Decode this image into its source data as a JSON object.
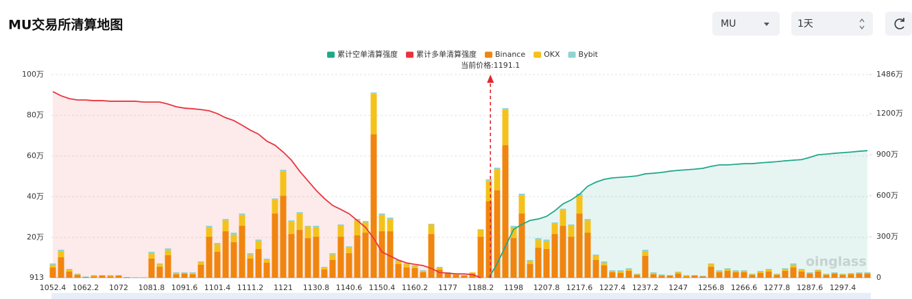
{
  "header": {
    "title": "MU交易所清算地图",
    "symbol": "MU",
    "range": "1天"
  },
  "chart_data": {
    "type": "bar",
    "price_label": "当前价格:1191.1",
    "current_price": 1191.1,
    "watermark": "oinglass",
    "categories": [
      "1052.4",
      null,
      null,
      null,
      "1062.2",
      null,
      null,
      null,
      "1072",
      null,
      null,
      null,
      "1081.8",
      null,
      null,
      null,
      "1091.6",
      null,
      null,
      null,
      "1101.4",
      null,
      null,
      null,
      "1111.2",
      null,
      null,
      null,
      "1121",
      null,
      null,
      null,
      "1130.8",
      null,
      null,
      null,
      "1140.6",
      null,
      null,
      null,
      "1150.4",
      null,
      null,
      null,
      "1160.2",
      null,
      null,
      null,
      "1177",
      null,
      null,
      null,
      "1188.2",
      null,
      null,
      null,
      "1198",
      null,
      null,
      null,
      "1207.8",
      null,
      null,
      null,
      "1217.6",
      null,
      null,
      null,
      "1227.4",
      null,
      null,
      null,
      "1237.2",
      null,
      null,
      null,
      "1247",
      null,
      null,
      null,
      "1256.8",
      null,
      null,
      null,
      "1266.6",
      null,
      null,
      null,
      "1277.8",
      null,
      null,
      null,
      "1287.6",
      null,
      null,
      null,
      "1297.4",
      null,
      null,
      null
    ],
    "ylim": [
      913,
      1000000
    ],
    "yticks": [
      913,
      {
        "value": 200000,
        "label": "20万"
      },
      {
        "value": 400000,
        "label": "40万"
      },
      {
        "value": 600000,
        "label": "60万"
      },
      {
        "value": 800000,
        "label": "80万"
      },
      {
        "value": 1000000,
        "label": "100万"
      }
    ],
    "y2lim": [
      0,
      14860000
    ],
    "y2ticks": [
      0,
      {
        "value": 3000000,
        "label": "300万"
      },
      {
        "value": 6000000,
        "label": "600万"
      },
      {
        "value": 9000000,
        "label": "900万"
      },
      {
        "value": 12000000,
        "label": "1200万"
      },
      {
        "value": 14860000,
        "label": "1486万"
      }
    ],
    "grid": true,
    "series": [
      {
        "name": "累计空单清算强度",
        "kind": "line",
        "color": "#1fa88a",
        "fill": "rgba(31,168,138,0.11)",
        "values": [
          null,
          null,
          null,
          null,
          null,
          null,
          null,
          null,
          null,
          null,
          null,
          null,
          null,
          null,
          null,
          null,
          null,
          null,
          null,
          null,
          null,
          null,
          null,
          null,
          null,
          null,
          null,
          null,
          null,
          null,
          null,
          null,
          null,
          null,
          null,
          null,
          null,
          null,
          null,
          null,
          null,
          null,
          null,
          null,
          null,
          null,
          null,
          null,
          null,
          null,
          null,
          null,
          null,
          913,
          71000,
          155000,
          239000,
          263000,
          283000,
          290000,
          303000,
          330000,
          364000,
          384000,
          411000,
          451000,
          471000,
          485000,
          492000,
          495000,
          498000,
          502000,
          512000,
          515000,
          519000,
          525000,
          529000,
          532000,
          535000,
          539000,
          549000,
          556000,
          556000,
          559000,
          562000,
          562000,
          566000,
          569000,
          572000,
          576000,
          579000,
          582000,
          593000,
          606000,
          609000,
          613000,
          616000,
          619000,
          623000,
          626000
        ]
      },
      {
        "name": "累计多单清算强度",
        "kind": "line",
        "color": "#e8343f",
        "fill": "rgba(240,90,100,0.13)",
        "values": [
          916000,
          896000,
          882000,
          875000,
          875000,
          872000,
          872000,
          869000,
          869000,
          869000,
          869000,
          865000,
          865000,
          865000,
          855000,
          842000,
          835000,
          832000,
          828000,
          822000,
          808000,
          788000,
          774000,
          751000,
          727000,
          707000,
          673000,
          653000,
          619000,
          579000,
          525000,
          478000,
          431000,
          391000,
          357000,
          337000,
          316000,
          283000,
          249000,
          195000,
          128000,
          108000,
          88000,
          74000,
          67000,
          61000,
          47000,
          27000,
          24000,
          20000,
          20000,
          17000,
          913,
          null,
          null,
          null,
          null,
          null,
          null,
          null,
          null,
          null,
          null,
          null,
          null,
          null,
          null,
          null,
          null,
          null,
          null,
          null,
          null,
          null,
          null,
          null,
          null,
          null,
          null,
          null,
          null,
          null,
          null,
          null,
          null,
          null,
          null,
          null,
          null,
          null,
          null,
          null,
          null,
          null,
          null,
          null,
          null,
          null,
          null,
          null
        ]
      },
      {
        "name": "Binance",
        "kind": "bar",
        "axis": "y2",
        "color": "#f0850f",
        "values": [
          750000,
          1500000,
          450000,
          200000,
          50000,
          100000,
          150000,
          100000,
          150000,
          50000,
          0,
          0,
          1400000,
          800000,
          1650000,
          250000,
          300000,
          250000,
          950000,
          3000000,
          1900000,
          3400000,
          2600000,
          3800000,
          1400000,
          2100000,
          1100000,
          4700000,
          6000000,
          3200000,
          3500000,
          2900000,
          3000000,
          600000,
          1300000,
          3000000,
          1800000,
          3100000,
          3300000,
          10500000,
          3400000,
          3400000,
          1000000,
          750000,
          700000,
          400000,
          3200000,
          600000,
          300000,
          200000,
          150000,
          300000,
          3000000,
          5600000,
          6400000,
          9700000,
          2900000,
          4700000,
          1000000,
          2200000,
          2100000,
          3200000,
          3800000,
          3000000,
          4700000,
          3300000,
          1300000,
          900000,
          400000,
          350000,
          500000,
          200000,
          1600000,
          250000,
          150000,
          150000,
          300000,
          100000,
          150000,
          100000,
          800000,
          400000,
          500000,
          400000,
          400000,
          200000,
          350000,
          450000,
          200000,
          500000,
          750000,
          450000,
          300000,
          450000,
          200000,
          300000,
          200000,
          250000,
          300000,
          300000
        ]
      },
      {
        "name": "OKX",
        "kind": "bar",
        "axis": "y2",
        "color": "#f5c21b",
        "values": [
          200000,
          400000,
          150000,
          50000,
          0,
          50000,
          50000,
          50000,
          0,
          0,
          0,
          0,
          350000,
          200000,
          350000,
          100000,
          50000,
          100000,
          200000,
          700000,
          550000,
          800000,
          550000,
          800000,
          300000,
          600000,
          250000,
          1000000,
          1800000,
          900000,
          1200000,
          850000,
          700000,
          150000,
          400000,
          800000,
          450000,
          1100000,
          750000,
          2950000,
          1200000,
          900000,
          250000,
          250000,
          150000,
          100000,
          700000,
          150000,
          50000,
          50000,
          50000,
          100000,
          500000,
          1500000,
          1550000,
          2600000,
          800000,
          1300000,
          250000,
          550000,
          550000,
          750000,
          1150000,
          800000,
          1300000,
          900000,
          300000,
          200000,
          100000,
          100000,
          150000,
          50000,
          350000,
          100000,
          50000,
          50000,
          100000,
          50000,
          50000,
          0,
          200000,
          100000,
          150000,
          100000,
          100000,
          50000,
          100000,
          150000,
          50000,
          150000,
          200000,
          150000,
          50000,
          100000,
          50000,
          50000,
          50000,
          50000,
          50000,
          50000
        ]
      },
      {
        "name": "Bybit",
        "kind": "bar",
        "axis": "y2",
        "color": "#8fd4d2",
        "values": [
          100000,
          150000,
          50000,
          50000,
          50000,
          50000,
          0,
          50000,
          50000,
          0,
          50000,
          50000,
          150000,
          50000,
          150000,
          50000,
          50000,
          50000,
          50000,
          100000,
          100000,
          100000,
          150000,
          100000,
          100000,
          100000,
          50000,
          100000,
          100000,
          100000,
          100000,
          50000,
          100000,
          50000,
          100000,
          100000,
          50000,
          100000,
          100000,
          100000,
          100000,
          100000,
          50000,
          50000,
          50000,
          50000,
          50000,
          50000,
          50000,
          50000,
          0,
          0,
          50000,
          100000,
          100000,
          100000,
          100000,
          150000,
          50000,
          150000,
          150000,
          100000,
          100000,
          100000,
          150000,
          100000,
          100000,
          100000,
          50000,
          100000,
          50000,
          50000,
          100000,
          50000,
          50000,
          0,
          50000,
          50000,
          0,
          50000,
          50000,
          50000,
          50000,
          50000,
          50000,
          50000,
          50000,
          50000,
          50000,
          50000,
          100000,
          50000,
          50000,
          50000,
          50000,
          50000,
          50000,
          50000,
          50000,
          50000
        ]
      }
    ]
  }
}
